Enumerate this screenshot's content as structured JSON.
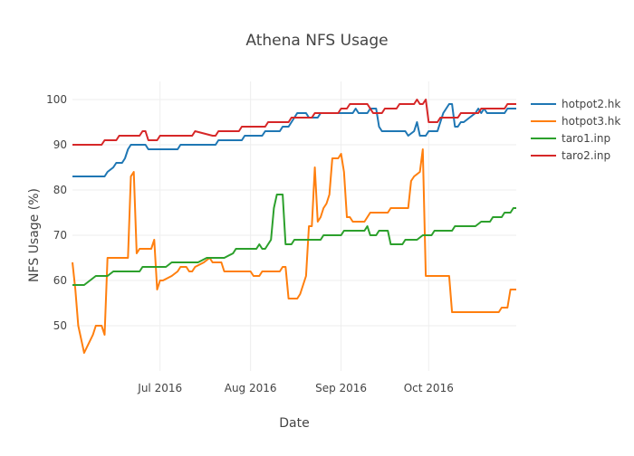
{
  "chart_data": {
    "type": "line",
    "title": "Athena NFS Usage",
    "xlabel": "Date",
    "ylabel": "NFS Usage (%)",
    "xlim": [
      "2016-06-01",
      "2016-10-31"
    ],
    "ylim": [
      40,
      104
    ],
    "x_ticks": [
      {
        "date": "2016-07-01",
        "label": "Jul 2016"
      },
      {
        "date": "2016-08-01",
        "label": "Aug 2016"
      },
      {
        "date": "2016-09-01",
        "label": "Sep 2016"
      },
      {
        "date": "2016-10-01",
        "label": "Oct 2016"
      }
    ],
    "y_ticks": [
      50,
      60,
      70,
      80,
      90,
      100
    ],
    "grid": true,
    "legend": "right",
    "series": [
      {
        "name": "hotpot2.hk",
        "color": "#1f77b4",
        "points": [
          [
            "2016-06-01",
            83
          ],
          [
            "2016-06-12",
            83
          ],
          [
            "2016-06-13",
            84
          ],
          [
            "2016-06-15",
            85
          ],
          [
            "2016-06-16",
            86
          ],
          [
            "2016-06-18",
            86
          ],
          [
            "2016-06-19",
            87
          ],
          [
            "2016-06-20",
            89
          ],
          [
            "2016-06-21",
            90
          ],
          [
            "2016-06-26",
            90
          ],
          [
            "2016-06-27",
            89
          ],
          [
            "2016-07-07",
            89
          ],
          [
            "2016-07-08",
            90
          ],
          [
            "2016-07-20",
            90
          ],
          [
            "2016-07-21",
            91
          ],
          [
            "2016-07-29",
            91
          ],
          [
            "2016-07-30",
            92
          ],
          [
            "2016-08-05",
            92
          ],
          [
            "2016-08-06",
            93
          ],
          [
            "2016-08-11",
            93
          ],
          [
            "2016-08-12",
            94
          ],
          [
            "2016-08-14",
            94
          ],
          [
            "2016-08-15",
            95
          ],
          [
            "2016-08-16",
            96
          ],
          [
            "2016-08-17",
            97
          ],
          [
            "2016-08-20",
            97
          ],
          [
            "2016-08-21",
            96
          ],
          [
            "2016-08-24",
            96
          ],
          [
            "2016-08-25",
            97
          ],
          [
            "2016-09-05",
            97
          ],
          [
            "2016-09-06",
            98
          ],
          [
            "2016-09-07",
            97
          ],
          [
            "2016-09-10",
            97
          ],
          [
            "2016-09-11",
            98
          ],
          [
            "2016-09-13",
            98
          ],
          [
            "2016-09-14",
            94
          ],
          [
            "2016-09-15",
            93
          ],
          [
            "2016-09-23",
            93
          ],
          [
            "2016-09-24",
            92
          ],
          [
            "2016-09-26",
            93
          ],
          [
            "2016-09-27",
            95
          ],
          [
            "2016-09-28",
            92
          ],
          [
            "2016-09-30",
            92
          ],
          [
            "2016-10-01",
            93
          ],
          [
            "2016-10-04",
            93
          ],
          [
            "2016-10-05",
            95
          ],
          [
            "2016-10-06",
            97
          ],
          [
            "2016-10-08",
            99
          ],
          [
            "2016-10-09",
            99
          ],
          [
            "2016-10-10",
            94
          ],
          [
            "2016-10-11",
            94
          ],
          [
            "2016-10-12",
            95
          ],
          [
            "2016-10-13",
            95
          ],
          [
            "2016-10-15",
            96
          ],
          [
            "2016-10-17",
            97
          ],
          [
            "2016-10-18",
            98
          ],
          [
            "2016-10-19",
            97
          ],
          [
            "2016-10-20",
            98
          ],
          [
            "2016-10-21",
            97
          ],
          [
            "2016-10-27",
            97
          ],
          [
            "2016-10-28",
            98
          ],
          [
            "2016-10-31",
            98
          ]
        ]
      },
      {
        "name": "hotpot3.hk",
        "color": "#ff7f0e",
        "points": [
          [
            "2016-06-01",
            64
          ],
          [
            "2016-06-02",
            58
          ],
          [
            "2016-06-03",
            50
          ],
          [
            "2016-06-05",
            44
          ],
          [
            "2016-06-08",
            48
          ],
          [
            "2016-06-09",
            50
          ],
          [
            "2016-06-11",
            50
          ],
          [
            "2016-06-12",
            48
          ],
          [
            "2016-06-13",
            65
          ],
          [
            "2016-06-20",
            65
          ],
          [
            "2016-06-21",
            83
          ],
          [
            "2016-06-22",
            84
          ],
          [
            "2016-06-23",
            66
          ],
          [
            "2016-06-24",
            67
          ],
          [
            "2016-06-28",
            67
          ],
          [
            "2016-06-29",
            69
          ],
          [
            "2016-06-30",
            58
          ],
          [
            "2016-07-01",
            60
          ],
          [
            "2016-07-02",
            60
          ],
          [
            "2016-07-05",
            61
          ],
          [
            "2016-07-07",
            62
          ],
          [
            "2016-07-08",
            63
          ],
          [
            "2016-07-10",
            63
          ],
          [
            "2016-07-11",
            62
          ],
          [
            "2016-07-12",
            62
          ],
          [
            "2016-07-13",
            63
          ],
          [
            "2016-07-16",
            64
          ],
          [
            "2016-07-18",
            65
          ],
          [
            "2016-07-19",
            64
          ],
          [
            "2016-07-22",
            64
          ],
          [
            "2016-07-23",
            62
          ],
          [
            "2016-08-01",
            62
          ],
          [
            "2016-08-02",
            61
          ],
          [
            "2016-08-04",
            61
          ],
          [
            "2016-08-05",
            62
          ],
          [
            "2016-08-11",
            62
          ],
          [
            "2016-08-12",
            63
          ],
          [
            "2016-08-13",
            63
          ],
          [
            "2016-08-14",
            56
          ],
          [
            "2016-08-17",
            56
          ],
          [
            "2016-08-18",
            57
          ],
          [
            "2016-08-20",
            61
          ],
          [
            "2016-08-21",
            72
          ],
          [
            "2016-08-22",
            72
          ],
          [
            "2016-08-23",
            85
          ],
          [
            "2016-08-24",
            73
          ],
          [
            "2016-08-25",
            74
          ],
          [
            "2016-08-26",
            76
          ],
          [
            "2016-08-27",
            77
          ],
          [
            "2016-08-28",
            79
          ],
          [
            "2016-08-29",
            87
          ],
          [
            "2016-08-31",
            87
          ],
          [
            "2016-09-01",
            88
          ],
          [
            "2016-09-02",
            84
          ],
          [
            "2016-09-03",
            74
          ],
          [
            "2016-09-04",
            74
          ],
          [
            "2016-09-05",
            73
          ],
          [
            "2016-09-09",
            73
          ],
          [
            "2016-09-10",
            74
          ],
          [
            "2016-09-11",
            75
          ],
          [
            "2016-09-17",
            75
          ],
          [
            "2016-09-18",
            76
          ],
          [
            "2016-09-24",
            76
          ],
          [
            "2016-09-25",
            82
          ],
          [
            "2016-09-26",
            83
          ],
          [
            "2016-09-28",
            84
          ],
          [
            "2016-09-29",
            89
          ],
          [
            "2016-09-30",
            61
          ],
          [
            "2016-10-08",
            61
          ],
          [
            "2016-10-09",
            53
          ],
          [
            "2016-10-25",
            53
          ],
          [
            "2016-10-26",
            54
          ],
          [
            "2016-10-28",
            54
          ],
          [
            "2016-10-29",
            58
          ],
          [
            "2016-10-31",
            58
          ]
        ]
      },
      {
        "name": "taro1.inp",
        "color": "#2ca02c",
        "points": [
          [
            "2016-06-01",
            59
          ],
          [
            "2016-06-05",
            59
          ],
          [
            "2016-06-09",
            61
          ],
          [
            "2016-06-13",
            61
          ],
          [
            "2016-06-15",
            62
          ],
          [
            "2016-06-24",
            62
          ],
          [
            "2016-06-25",
            63
          ],
          [
            "2016-07-03",
            63
          ],
          [
            "2016-07-05",
            64
          ],
          [
            "2016-07-14",
            64
          ],
          [
            "2016-07-17",
            65
          ],
          [
            "2016-07-23",
            65
          ],
          [
            "2016-07-26",
            66
          ],
          [
            "2016-07-27",
            67
          ],
          [
            "2016-08-03",
            67
          ],
          [
            "2016-08-04",
            68
          ],
          [
            "2016-08-05",
            67
          ],
          [
            "2016-08-06",
            67
          ],
          [
            "2016-08-08",
            69
          ],
          [
            "2016-08-09",
            76
          ],
          [
            "2016-08-10",
            79
          ],
          [
            "2016-08-12",
            79
          ],
          [
            "2016-08-13",
            68
          ],
          [
            "2016-08-15",
            68
          ],
          [
            "2016-08-16",
            69
          ],
          [
            "2016-08-25",
            69
          ],
          [
            "2016-08-26",
            70
          ],
          [
            "2016-09-01",
            70
          ],
          [
            "2016-09-02",
            71
          ],
          [
            "2016-09-09",
            71
          ],
          [
            "2016-09-10",
            72
          ],
          [
            "2016-09-11",
            70
          ],
          [
            "2016-09-13",
            70
          ],
          [
            "2016-09-14",
            71
          ],
          [
            "2016-09-17",
            71
          ],
          [
            "2016-09-18",
            68
          ],
          [
            "2016-09-22",
            68
          ],
          [
            "2016-09-23",
            69
          ],
          [
            "2016-09-27",
            69
          ],
          [
            "2016-09-29",
            70
          ],
          [
            "2016-10-02",
            70
          ],
          [
            "2016-10-03",
            71
          ],
          [
            "2016-10-09",
            71
          ],
          [
            "2016-10-10",
            72
          ],
          [
            "2016-10-17",
            72
          ],
          [
            "2016-10-19",
            73
          ],
          [
            "2016-10-22",
            73
          ],
          [
            "2016-10-23",
            74
          ],
          [
            "2016-10-26",
            74
          ],
          [
            "2016-10-27",
            75
          ],
          [
            "2016-10-29",
            75
          ],
          [
            "2016-10-30",
            76
          ],
          [
            "2016-10-31",
            76
          ]
        ]
      },
      {
        "name": "taro2.inp",
        "color": "#d62728",
        "points": [
          [
            "2016-06-01",
            90
          ],
          [
            "2016-06-11",
            90
          ],
          [
            "2016-06-12",
            91
          ],
          [
            "2016-06-16",
            91
          ],
          [
            "2016-06-17",
            92
          ],
          [
            "2016-06-24",
            92
          ],
          [
            "2016-06-25",
            93
          ],
          [
            "2016-06-26",
            93
          ],
          [
            "2016-06-27",
            91
          ],
          [
            "2016-06-30",
            91
          ],
          [
            "2016-07-01",
            92
          ],
          [
            "2016-07-12",
            92
          ],
          [
            "2016-07-13",
            93
          ],
          [
            "2016-07-19",
            92
          ],
          [
            "2016-07-20",
            92
          ],
          [
            "2016-07-21",
            93
          ],
          [
            "2016-07-28",
            93
          ],
          [
            "2016-07-29",
            94
          ],
          [
            "2016-08-06",
            94
          ],
          [
            "2016-08-07",
            95
          ],
          [
            "2016-08-14",
            95
          ],
          [
            "2016-08-15",
            96
          ],
          [
            "2016-08-22",
            96
          ],
          [
            "2016-08-23",
            97
          ],
          [
            "2016-08-31",
            97
          ],
          [
            "2016-09-01",
            98
          ],
          [
            "2016-09-03",
            98
          ],
          [
            "2016-09-04",
            99
          ],
          [
            "2016-09-10",
            99
          ],
          [
            "2016-09-11",
            98
          ],
          [
            "2016-09-12",
            97
          ],
          [
            "2016-09-15",
            97
          ],
          [
            "2016-09-16",
            98
          ],
          [
            "2016-09-20",
            98
          ],
          [
            "2016-09-21",
            99
          ],
          [
            "2016-09-26",
            99
          ],
          [
            "2016-09-27",
            100
          ],
          [
            "2016-09-28",
            99
          ],
          [
            "2016-09-29",
            99
          ],
          [
            "2016-09-30",
            100
          ],
          [
            "2016-10-01",
            95
          ],
          [
            "2016-10-04",
            95
          ],
          [
            "2016-10-05",
            96
          ],
          [
            "2016-10-11",
            96
          ],
          [
            "2016-10-12",
            97
          ],
          [
            "2016-10-18",
            97
          ],
          [
            "2016-10-19",
            98
          ],
          [
            "2016-10-27",
            98
          ],
          [
            "2016-10-28",
            99
          ],
          [
            "2016-10-31",
            99
          ]
        ]
      }
    ]
  }
}
